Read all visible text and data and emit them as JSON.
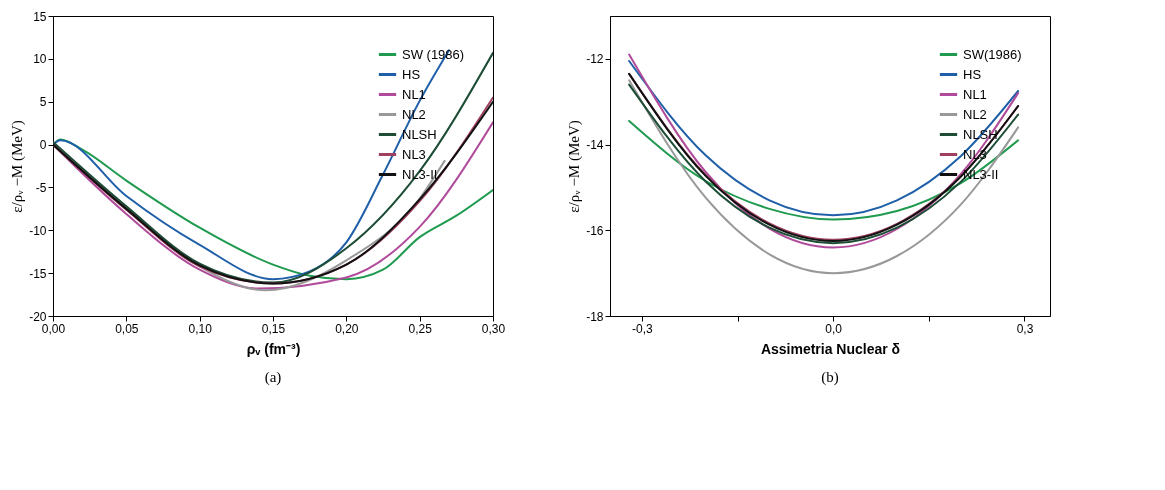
{
  "chart_data": [
    {
      "type": "line",
      "xlabel": "ρᵥ (fm⁻³)",
      "ylabel": "ε/ρᵥ −M (MeV)",
      "annotations": [
        "(a)"
      ],
      "xlim": [
        0,
        0.3
      ],
      "ylim": [
        -20,
        15
      ],
      "xticks": [
        {
          "value": 0,
          "label": "0,00"
        },
        {
          "value": 0.05,
          "label": "0,05"
        },
        {
          "value": 0.1,
          "label": "0,10"
        },
        {
          "value": 0.15,
          "label": "0,15"
        },
        {
          "value": 0.2,
          "label": "0,20"
        },
        {
          "value": 0.25,
          "label": "0,25"
        },
        {
          "value": 0.3,
          "label": "0,30"
        }
      ],
      "yticks": [
        -20,
        -15,
        -10,
        -5,
        0,
        5,
        10,
        15
      ],
      "grid": false,
      "legend": "top right",
      "line_style": "solid",
      "series": [
        {
          "name": "SW (1986)",
          "color": "#1f9a4f",
          "x": [
            0,
            0.005,
            0.02,
            0.05,
            0.1,
            0.15,
            0.175,
            0.2,
            0.225,
            0.25,
            0.275,
            0.3
          ],
          "values": [
            0,
            0.6,
            -0.6,
            -4.2,
            -9.7,
            -14.0,
            -15.3,
            -15.7,
            -14.6,
            -10.8,
            -8.3,
            -5.3
          ]
        },
        {
          "name": "HS",
          "color": "#1f5fa8",
          "x": [
            0,
            0.005,
            0.05,
            0.1,
            0.15,
            0.175,
            0.2,
            0.225,
            0.25,
            0.27
          ],
          "values": [
            0,
            0.5,
            -6.0,
            -11.7,
            -15.7,
            -14.8,
            -11.4,
            -3.5,
            5.1,
            11.0
          ]
        },
        {
          "name": "NL1",
          "color": "#b04a9a",
          "x": [
            0,
            0.05,
            0.1,
            0.14,
            0.2,
            0.25,
            0.3
          ],
          "values": [
            0,
            -8.1,
            -14.6,
            -16.8,
            -15.5,
            -9.6,
            2.6
          ]
        },
        {
          "name": "NL2",
          "color": "#999999",
          "x": [
            0,
            0.05,
            0.1,
            0.145,
            0.2,
            0.25,
            0.267
          ],
          "values": [
            0,
            -7.3,
            -14.2,
            -17.0,
            -13.5,
            -6.3,
            -1.9
          ]
        },
        {
          "name": "NLSH",
          "color": "#1d4d35",
          "x": [
            0,
            0.05,
            0.1,
            0.15,
            0.2,
            0.25,
            0.3
          ],
          "values": [
            0.3,
            -7.2,
            -13.9,
            -16.1,
            -12.1,
            -3.1,
            10.7
          ]
        },
        {
          "name": "NL3",
          "color": "#a04060",
          "x": [
            0,
            0.05,
            0.1,
            0.15,
            0.2,
            0.25,
            0.3
          ],
          "values": [
            0,
            -7.6,
            -14.2,
            -16.2,
            -14.0,
            -6.6,
            5.5
          ]
        },
        {
          "name": "NL3-II",
          "color": "#111111",
          "x": [
            0,
            0.05,
            0.1,
            0.15,
            0.2,
            0.25,
            0.3
          ],
          "values": [
            0,
            -7.5,
            -14.1,
            -16.2,
            -14.0,
            -6.4,
            5.0
          ]
        }
      ]
    },
    {
      "type": "line",
      "xlabel": "Assimetria Nuclear δ",
      "ylabel": "ε/ρᵥ −M (MeV)",
      "annotations": [
        "(b)"
      ],
      "xlim": [
        -0.35,
        0.34
      ],
      "ylim": [
        -18,
        -11
      ],
      "xticks": [
        {
          "value": -0.3,
          "label": "-0,3"
        },
        {
          "value": -0.15,
          "label": null
        },
        {
          "value": 0,
          "label": "0,0"
        },
        {
          "value": 0.15,
          "label": null
        },
        {
          "value": 0.3,
          "label": "0,3"
        }
      ],
      "yticks": [
        -18,
        -16,
        -14,
        -12
      ],
      "grid": false,
      "legend": "top right",
      "line_style": "solid",
      "series": [
        {
          "name": "SW(1986)",
          "color": "#1f9a4f",
          "x": [
            -0.32,
            -0.2,
            -0.1,
            0,
            0.1,
            0.2,
            0.29
          ],
          "values": [
            -13.45,
            -14.85,
            -15.5,
            -15.75,
            -15.55,
            -14.9,
            -13.9
          ]
        },
        {
          "name": "HS",
          "color": "#1f5fa8",
          "x": [
            -0.32,
            -0.2,
            -0.1,
            0,
            0.1,
            0.2,
            0.29
          ],
          "values": [
            -12.05,
            -14.25,
            -15.3,
            -15.65,
            -15.3,
            -14.27,
            -12.75
          ]
        },
        {
          "name": "NL1",
          "color": "#b04a9a",
          "x": [
            -0.32,
            -0.2,
            -0.1,
            0,
            0.1,
            0.2,
            0.29
          ],
          "values": [
            -11.9,
            -14.64,
            -15.96,
            -16.4,
            -15.97,
            -14.69,
            -12.8
          ]
        },
        {
          "name": "NL2",
          "color": "#999999",
          "x": [
            -0.32,
            -0.2,
            -0.1,
            0,
            0.1,
            0.2,
            0.29
          ],
          "values": [
            -12.5,
            -15.24,
            -16.56,
            -17.0,
            -16.6,
            -15.4,
            -13.6
          ]
        },
        {
          "name": "NLSH",
          "color": "#1d4d35",
          "x": [
            -0.32,
            -0.2,
            -0.1,
            0,
            0.1,
            0.2,
            0.29
          ],
          "values": [
            -12.6,
            -14.86,
            -15.94,
            -16.3,
            -15.94,
            -14.87,
            -13.3
          ]
        },
        {
          "name": "NL3",
          "color": "#a04060",
          "x": [
            -0.32,
            -0.2,
            -0.1,
            0,
            0.1,
            0.2,
            0.29
          ],
          "values": [
            -12.35,
            -14.71,
            -15.84,
            -16.22,
            -15.85,
            -14.74,
            -13.1
          ]
        },
        {
          "name": "NL3-II",
          "color": "#111111",
          "x": [
            -0.32,
            -0.2,
            -0.1,
            0,
            0.1,
            0.2,
            0.29
          ],
          "values": [
            -12.35,
            -14.73,
            -15.87,
            -16.25,
            -15.87,
            -14.75,
            -13.1
          ]
        }
      ]
    }
  ]
}
